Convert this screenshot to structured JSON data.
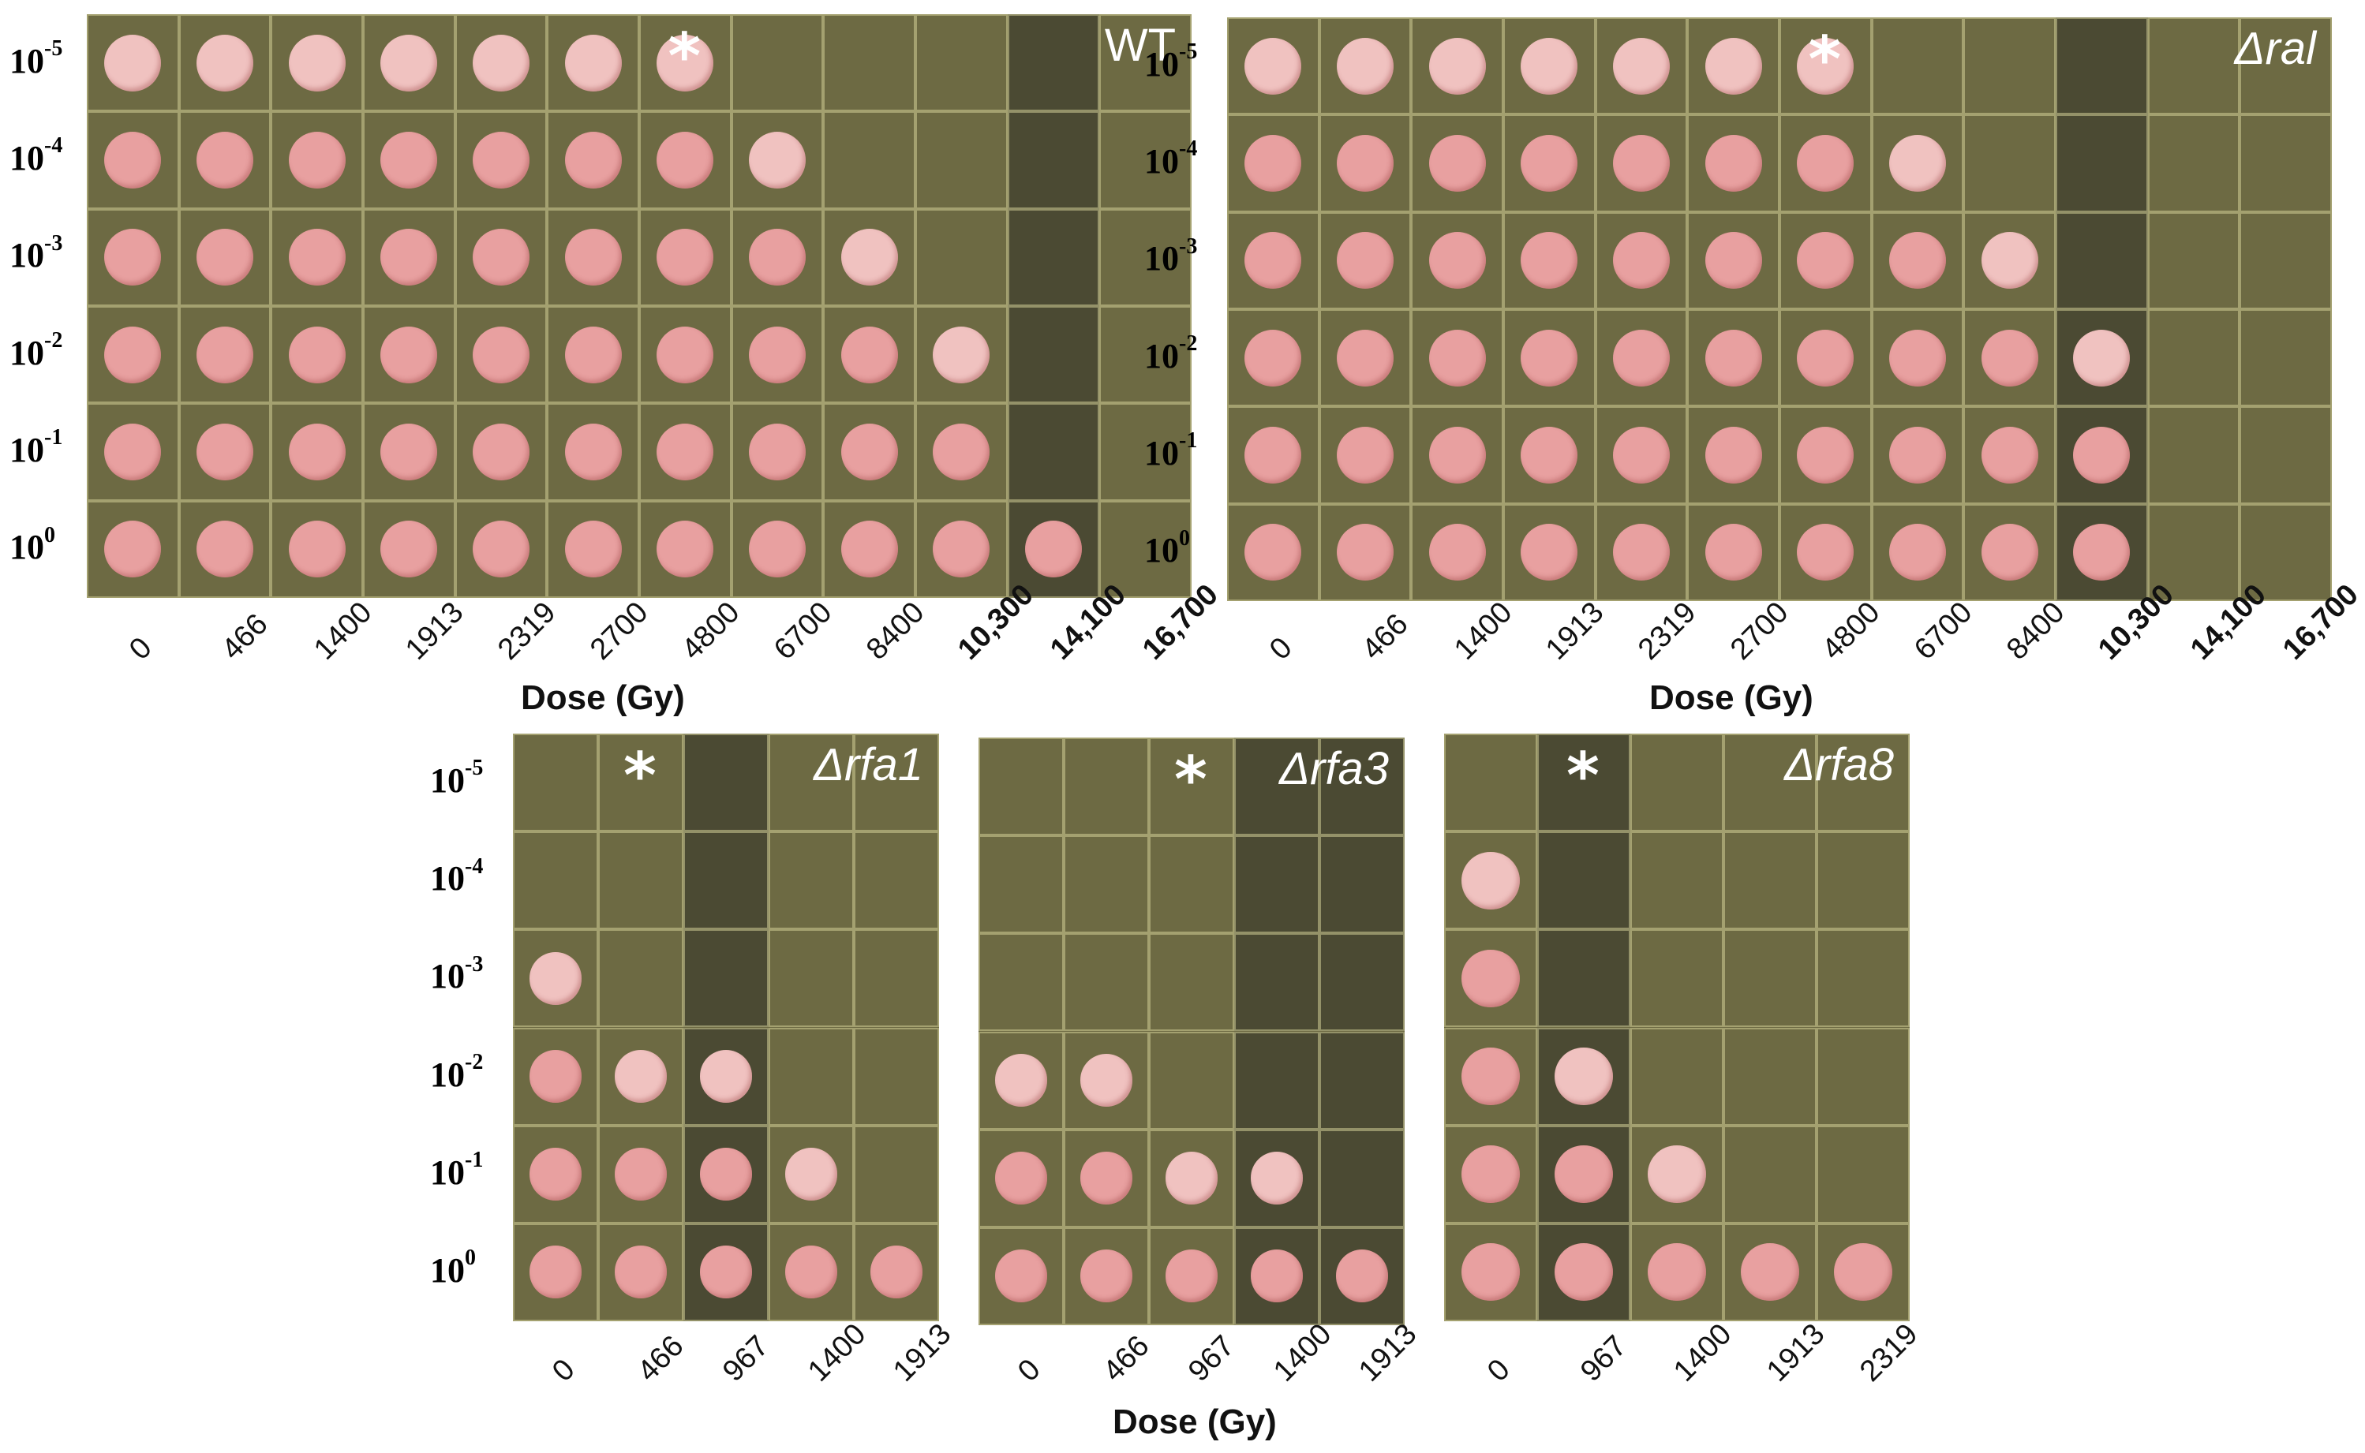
{
  "figure": {
    "star": "*",
    "axis_label": "Dose (Gy)",
    "dilutions": [
      {
        "base": "10",
        "exp": "-5"
      },
      {
        "base": "10",
        "exp": "-4"
      },
      {
        "base": "10",
        "exp": "-3"
      },
      {
        "base": "10",
        "exp": "-2"
      },
      {
        "base": "10",
        "exp": "-1"
      },
      {
        "base": "10",
        "exp": "0"
      }
    ],
    "panels": [
      {
        "id": "wt",
        "strain": "WT",
        "doses": [
          "0",
          "466",
          "1400",
          "1913",
          "2319",
          "2700",
          "4800",
          "6700",
          "8400",
          "10,300",
          "14,100",
          "16,700"
        ],
        "bold_doses": [
          "10,300",
          "14,100",
          "16,700"
        ],
        "star_column": 6,
        "growth_cols": [
          6,
          6,
          6,
          6,
          6,
          6,
          6,
          5,
          4,
          3,
          1,
          0
        ],
        "dark_cols": [
          10
        ]
      },
      {
        "id": "ral",
        "strain": "Δral",
        "doses": [
          "0",
          "466",
          "1400",
          "1913",
          "2319",
          "2700",
          "4800",
          "6700",
          "8400",
          "10,300",
          "14,100",
          "16,700"
        ],
        "bold_doses": [
          "10,300",
          "14,100",
          "16,700"
        ],
        "star_column": 6,
        "growth_cols": [
          6,
          6,
          6,
          6,
          6,
          6,
          6,
          5,
          4,
          3,
          0,
          0
        ],
        "dark_cols": [
          9
        ]
      },
      {
        "id": "rfa1",
        "strain": "Δrfa1",
        "doses": [
          "0",
          "466",
          "967",
          "1400",
          "1913"
        ],
        "bold_doses": [],
        "star_column": 1,
        "growth_cols": [
          4,
          3,
          3,
          2,
          1
        ],
        "dark_cols": [
          2
        ]
      },
      {
        "id": "rfa3",
        "strain": "Δrfa3",
        "doses": [
          "0",
          "466",
          "967",
          "1400",
          "1913"
        ],
        "bold_doses": [],
        "star_column": 2,
        "growth_cols": [
          3,
          3,
          2,
          2,
          1
        ],
        "dark_cols": [
          3,
          4
        ]
      },
      {
        "id": "rfa8",
        "strain": "Δrfa8",
        "doses": [
          "0",
          "967",
          "1400",
          "1913",
          "2319"
        ],
        "bold_doses": [],
        "star_column": 1,
        "growth_cols": [
          5,
          3,
          2,
          1,
          1
        ],
        "dark_cols": [
          1
        ]
      }
    ]
  }
}
